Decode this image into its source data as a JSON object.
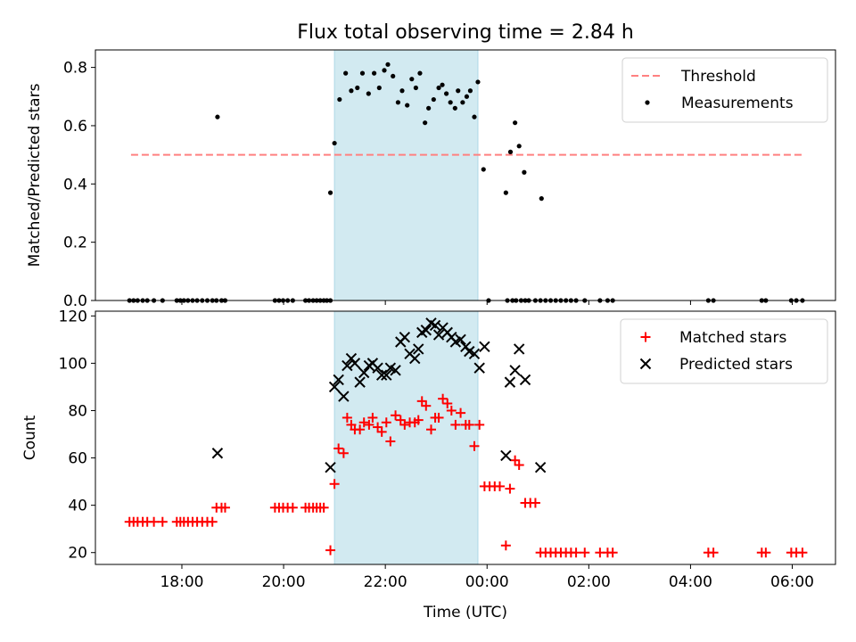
{
  "chart_data": {
    "type": "scatter",
    "title": "Flux total observing time = 2.84 h",
    "xlabel": "Time (UTC)",
    "x_ticks": [
      "18:00",
      "20:00",
      "22:00",
      "00:00",
      "02:00",
      "04:00",
      "06:00"
    ],
    "x_tick_hours": [
      18,
      20,
      22,
      24,
      26,
      28,
      30
    ],
    "xlim_hours": [
      16.3,
      30.85
    ],
    "shaded_interval_hours": [
      21.0,
      23.82
    ],
    "shade_color": "#add8e6",
    "panels": [
      {
        "ylabel": "Matched/Predicted stars",
        "ylim": [
          0,
          0.86
        ],
        "yticks": [
          0.0,
          0.2,
          0.4,
          0.6,
          0.8
        ],
        "ytick_labels": [
          "0.0",
          "0.2",
          "0.4",
          "0.6",
          "0.8"
        ],
        "legend_position": "upper right",
        "threshold": {
          "name": "Threshold",
          "value": 0.5,
          "x_range": [
            17.0,
            30.2
          ],
          "color": "#ff8080",
          "style": "dashed"
        },
        "series": [
          {
            "name": "Measurements",
            "marker": "dot",
            "color": "#000000",
            "x": [
              16.97,
              17.05,
              17.13,
              17.23,
              17.32,
              17.45,
              17.62,
              17.9,
              17.97,
              18.04,
              18.12,
              18.21,
              18.3,
              18.4,
              18.5,
              18.6,
              18.68,
              18.78,
              18.85,
              19.83,
              19.91,
              19.99,
              20.08,
              20.18,
              20.43,
              20.5,
              20.58,
              20.65,
              20.72,
              20.79,
              20.85,
              20.92,
              20.92,
              21.0,
              21.1,
              21.22,
              21.33,
              21.45,
              21.55,
              21.67,
              21.78,
              21.88,
              21.98,
              22.05,
              22.15,
              22.25,
              22.33,
              22.43,
              22.52,
              22.6,
              22.68,
              22.78,
              22.85,
              22.95,
              23.05,
              23.12,
              23.2,
              23.28,
              23.37,
              23.43,
              23.52,
              23.6,
              23.67,
              23.75,
              23.82,
              23.93,
              24.37,
              24.46,
              24.55,
              24.63,
              24.73,
              24.82,
              24.95,
              25.05,
              25.15,
              25.25,
              25.35,
              25.45,
              25.55,
              25.65,
              25.75,
              25.92,
              26.22,
              26.37,
              26.47,
              28.35,
              28.45,
              29.4,
              29.48,
              29.98,
              30.08,
              30.2,
              18.7,
              24.03,
              24.4,
              24.5,
              24.57,
              24.67,
              24.75,
              25.07
            ],
            "y": [
              0,
              0,
              0,
              0,
              0,
              0,
              0,
              0,
              0,
              0,
              0,
              0,
              0,
              0,
              0,
              0,
              0,
              0,
              0,
              0,
              0,
              0,
              0,
              0,
              0,
              0,
              0,
              0,
              0,
              0,
              0,
              0,
              0.37,
              0.54,
              0.69,
              0.78,
              0.72,
              0.73,
              0.78,
              0.71,
              0.78,
              0.73,
              0.79,
              0.81,
              0.77,
              0.68,
              0.72,
              0.67,
              0.76,
              0.73,
              0.78,
              0.61,
              0.66,
              0.69,
              0.73,
              0.74,
              0.71,
              0.68,
              0.66,
              0.72,
              0.68,
              0.7,
              0.72,
              0.63,
              0.75,
              0.45,
              0.37,
              0.51,
              0.61,
              0.53,
              0.44,
              0.0,
              0.0,
              0.0,
              0.0,
              0.0,
              0.0,
              0.0,
              0.0,
              0.0,
              0.0,
              0.0,
              0.0,
              0.0,
              0.0,
              0.0,
              0.0,
              0.0,
              0.0,
              0.0,
              0.0,
              0.0,
              0.63,
              0.0,
              0.0,
              0.0,
              0.0,
              0.0,
              0.0,
              0.35
            ]
          }
        ]
      },
      {
        "ylabel": "Count",
        "ylim": [
          15,
          122
        ],
        "yticks": [
          20,
          40,
          60,
          80,
          100,
          120
        ],
        "ytick_labels": [
          "20",
          "40",
          "60",
          "80",
          "100",
          "120"
        ],
        "legend_position": "upper right",
        "series": [
          {
            "name": "Matched stars",
            "marker": "plus",
            "color": "#ff0000",
            "x": [
              16.97,
              17.05,
              17.13,
              17.23,
              17.32,
              17.45,
              17.62,
              17.9,
              17.97,
              18.04,
              18.12,
              18.21,
              18.3,
              18.4,
              18.5,
              18.6,
              18.68,
              18.78,
              18.85,
              19.83,
              19.91,
              19.99,
              20.08,
              20.18,
              20.43,
              20.5,
              20.58,
              20.65,
              20.72,
              20.79,
              20.92,
              21.0,
              21.08,
              21.18,
              21.25,
              21.33,
              21.4,
              21.5,
              21.58,
              21.68,
              21.75,
              21.85,
              21.93,
              22.02,
              22.1,
              22.2,
              22.3,
              22.38,
              22.48,
              22.58,
              22.65,
              22.72,
              22.8,
              22.9,
              22.98,
              23.05,
              23.13,
              23.22,
              23.3,
              23.38,
              23.48,
              23.58,
              23.65,
              23.75,
              23.85,
              23.95,
              24.05,
              24.15,
              24.25,
              24.37,
              24.45,
              24.55,
              24.63,
              24.75,
              24.85,
              24.95,
              25.05,
              25.15,
              25.25,
              25.35,
              25.45,
              25.55,
              25.65,
              25.75,
              25.92,
              26.22,
              26.37,
              26.47,
              28.35,
              28.45,
              29.4,
              29.48,
              29.98,
              30.08,
              30.2
            ],
            "y": [
              33,
              33,
              33,
              33,
              33,
              33,
              33,
              33,
              33,
              33,
              33,
              33,
              33,
              33,
              33,
              33,
              39,
              39,
              39,
              39,
              39,
              39,
              39,
              39,
              39,
              39,
              39,
              39,
              39,
              39,
              21,
              49,
              64,
              62,
              77,
              74,
              72,
              72,
              75,
              74,
              77,
              73,
              71,
              75,
              67,
              78,
              76,
              74,
              75,
              75,
              76,
              84,
              82,
              72,
              77,
              77,
              85,
              83,
              80,
              74,
              79,
              74,
              74,
              65,
              74,
              48,
              48,
              48,
              48,
              23,
              47,
              59,
              57,
              41,
              41,
              41,
              20,
              20,
              20,
              20,
              20,
              20,
              20,
              20,
              20,
              20,
              20,
              20,
              20,
              20,
              20,
              20,
              20,
              20,
              20
            ]
          },
          {
            "name": "Predicted stars",
            "marker": "x",
            "color": "#000000",
            "x": [
              18.7,
              20.92,
              21.0,
              21.08,
              21.18,
              21.25,
              21.33,
              21.4,
              21.5,
              21.58,
              21.68,
              21.75,
              21.85,
              21.93,
              22.02,
              22.1,
              22.2,
              22.3,
              22.38,
              22.48,
              22.58,
              22.65,
              22.72,
              22.8,
              22.9,
              22.98,
              23.05,
              23.13,
              23.22,
              23.3,
              23.38,
              23.48,
              23.58,
              23.65,
              23.75,
              23.85,
              23.95,
              24.37,
              24.45,
              24.55,
              24.63,
              24.75,
              25.05
            ],
            "y": [
              62,
              56,
              90,
              93,
              86,
              99,
              102,
              100,
              92,
              96,
              99,
              100,
              98,
              95,
              95,
              98,
              97,
              109,
              111,
              104,
              102,
              106,
              113,
              114,
              117,
              116,
              112,
              115,
              113,
              111,
              109,
              110,
              107,
              105,
              104,
              98,
              107,
              61,
              92,
              97,
              106,
              93,
              56
            ]
          }
        ]
      }
    ]
  }
}
